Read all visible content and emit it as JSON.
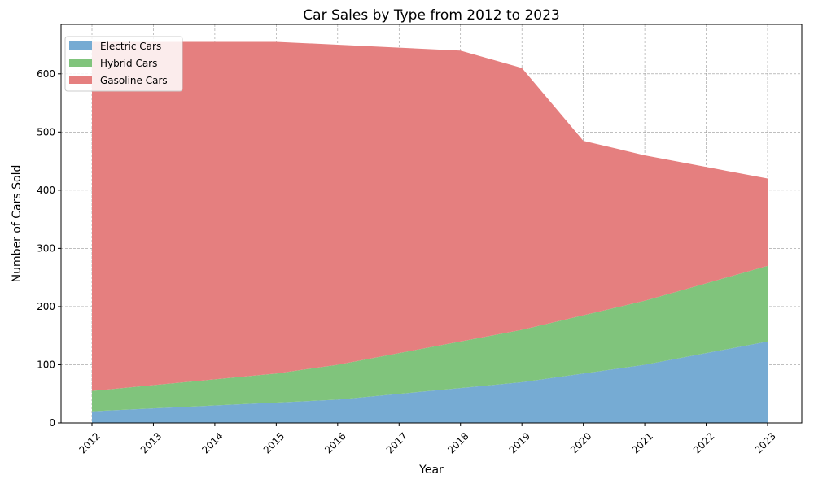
{
  "chart_data": {
    "type": "area",
    "stacked": true,
    "title": "Car Sales by Type from 2012 to 2023",
    "xlabel": "Year",
    "ylabel": "Number of Cars Sold",
    "x": [
      "2012",
      "2013",
      "2014",
      "2015",
      "2016",
      "2017",
      "2018",
      "2019",
      "2020",
      "2021",
      "2022",
      "2023"
    ],
    "ylim": [
      0,
      685
    ],
    "yticks": [
      0,
      100,
      200,
      300,
      400,
      500,
      600
    ],
    "grid": true,
    "legend_position": "top-left",
    "series": [
      {
        "name": "Electric Cars",
        "color": "#76abd3",
        "values": [
          20,
          25,
          30,
          35,
          40,
          50,
          60,
          70,
          85,
          100,
          120,
          140
        ]
      },
      {
        "name": "Hybrid Cars",
        "color": "#80c47c",
        "values": [
          35,
          40,
          45,
          50,
          60,
          70,
          80,
          90,
          100,
          110,
          120,
          130
        ]
      },
      {
        "name": "Gasoline Cars",
        "color": "#e57f7f",
        "values": [
          600,
          590,
          580,
          570,
          550,
          525,
          500,
          450,
          300,
          250,
          200,
          150
        ]
      }
    ]
  }
}
